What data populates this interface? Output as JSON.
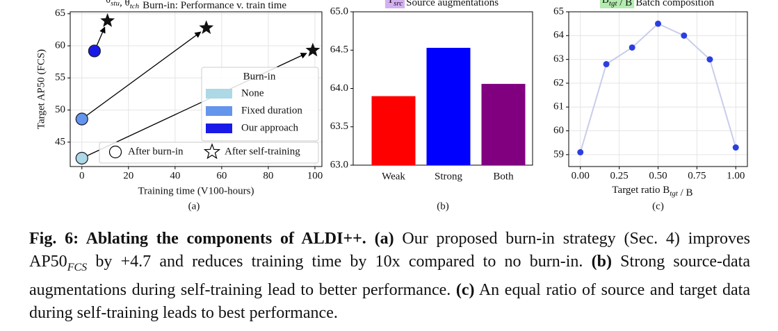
{
  "chart_data": [
    {
      "type": "scatter",
      "title_math": [
        {
          "base": "θ",
          "sub": "stu"
        },
        {
          "base": ", θ",
          "sub": "tch"
        }
      ],
      "title": "Burn-in: Performance v. train time",
      "xlabel": "Training time (V100-hours)",
      "ylabel": "Target AP50 (FCS)",
      "panel_label": "(a)",
      "xlim": [
        -5,
        103
      ],
      "ylim": [
        41.2,
        65.3
      ],
      "xticks": [
        0,
        20,
        40,
        60,
        80,
        100
      ],
      "yticks": [
        45,
        50,
        55,
        60,
        65
      ],
      "grid": true,
      "legend_title": "Burn-in",
      "series": [
        {
          "name": "None",
          "color": "#add8e6",
          "x": [
            0,
            99.1
          ],
          "values": [
            42.5,
            59.3
          ]
        },
        {
          "name": "Fixed duration",
          "color": "#6495ed",
          "x": [
            0,
            53.4
          ],
          "values": [
            48.6,
            62.8
          ]
        },
        {
          "name": "Our approach",
          "color": "#1a1ae8",
          "x": [
            5.4,
            11
          ],
          "values": [
            59.2,
            63.9
          ]
        }
      ],
      "marker_labels": [
        "After burn-in",
        "After self-training"
      ]
    },
    {
      "type": "bar",
      "title_math": [
        {
          "base": "T",
          "sub": "src"
        }
      ],
      "title_highlight": "#d4b0f2",
      "title": "Source augmentations",
      "panel_label": "(b)",
      "categories": [
        "Weak",
        "Strong",
        "Both"
      ],
      "values": [
        63.9,
        64.53,
        64.06
      ],
      "colors": [
        "#ff0000",
        "#0000ff",
        "#800080"
      ],
      "ylim": [
        63.0,
        65.0
      ],
      "yticks": [
        {
          "value": 63,
          "label": "63.0"
        },
        63.5,
        {
          "value": 64,
          "label": "64.0"
        },
        64.5,
        {
          "value": 65,
          "label": "65.0"
        }
      ],
      "grid": false
    },
    {
      "type": "line",
      "title_math": [
        {
          "base": "B",
          "sub": "tgt"
        },
        {
          "base": " / B"
        }
      ],
      "title_highlight": "#b4ecb0",
      "title": "Batch composition",
      "xlabel_math": [
        {
          "base": "Target ratio B",
          "sub": "tgt"
        },
        {
          "base": " / B"
        }
      ],
      "panel_label": "(c)",
      "x": [
        0,
        0.167,
        0.333,
        0.5,
        0.667,
        0.833,
        1.0
      ],
      "values": [
        59.1,
        62.8,
        63.5,
        64.5,
        64.0,
        63.0,
        59.3
      ],
      "color": "#2b3fe0",
      "line_color": "#c8cdea",
      "xlim": [
        -0.075,
        1.075
      ],
      "ylim": [
        58.5,
        65.0
      ],
      "xticks": [
        {
          "value": 0,
          "label": "0.00"
        },
        0.25,
        {
          "value": 0.5,
          "label": "0.50"
        },
        0.75,
        {
          "value": 1,
          "label": "1.00"
        }
      ],
      "yticks": [
        59,
        60,
        61,
        62,
        63,
        64,
        65
      ],
      "grid": true
    }
  ],
  "caption": {
    "parts": [
      {
        "text": "Fig. 6: Ablating the components of ALDI++. (a)",
        "style": "bold"
      },
      {
        "text": " Our proposed burn-in strategy (Sec. 4) improves AP50",
        "style": "normal"
      },
      {
        "text": "FCS",
        "style": "sub"
      },
      {
        "text": " by +4.7 and reduces training time by 10x compared to no burn-in. ",
        "style": "normal"
      },
      {
        "text": "(b)",
        "style": "bold"
      },
      {
        "text": " Strong source-data augmentations during self-training lead to better performance. ",
        "style": "normal"
      },
      {
        "text": "(c)",
        "style": "bold"
      },
      {
        "text": " An equal ratio of source and target data during self-training leads to best performance.",
        "style": "normal"
      }
    ]
  }
}
